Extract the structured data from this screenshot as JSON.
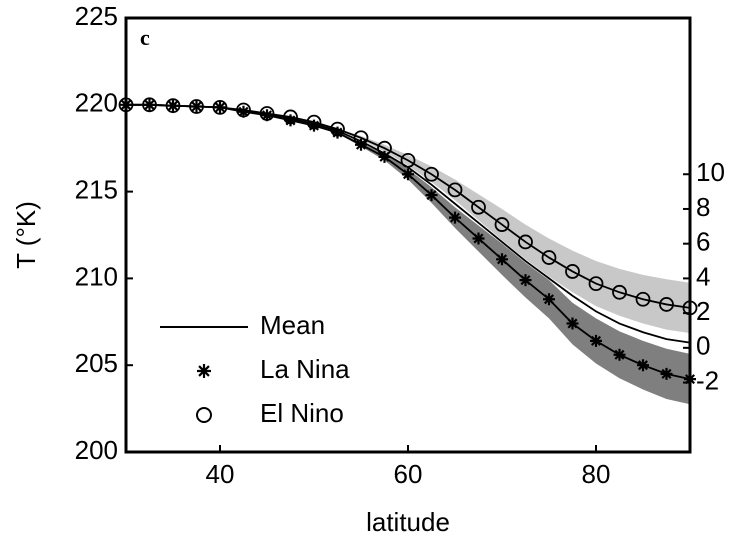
{
  "chart_data": {
    "type": "line",
    "annotation": "c",
    "xlabel": "latitude",
    "ylabel": "T (°K)",
    "x": [
      30,
      32.5,
      35,
      37.5,
      40,
      42.5,
      45,
      47.5,
      50,
      52.5,
      55,
      57.5,
      60,
      62.5,
      65,
      67.5,
      70,
      72.5,
      75,
      77.5,
      80,
      82.5,
      85,
      87.5,
      90
    ],
    "xlim": [
      30,
      90
    ],
    "xticks": [
      40,
      60,
      80
    ],
    "ylim": [
      200,
      225
    ],
    "yticks": [
      200,
      205,
      210,
      215,
      220,
      225
    ],
    "y2lim": [
      -6,
      19
    ],
    "y2ticks": [
      -2,
      0,
      2,
      4,
      6,
      8,
      10
    ],
    "legend": "lower left",
    "series": [
      {
        "name": "Mean",
        "color": "#000000",
        "marker": "none",
        "values": [
          220,
          220,
          219.95,
          219.9,
          219.85,
          219.65,
          219.45,
          219.2,
          218.9,
          218.5,
          217.9,
          217.2,
          216.4,
          215.4,
          214.3,
          213.2,
          212.1,
          211.0,
          210.0,
          209.0,
          208.1,
          207.4,
          206.9,
          206.5,
          206.3
        ]
      },
      {
        "name": "La Nina",
        "color": "#000000",
        "marker": "star",
        "band_color": "#7f7f7f",
        "values": [
          220,
          220,
          219.95,
          219.9,
          219.85,
          219.6,
          219.4,
          219.1,
          218.8,
          218.4,
          217.7,
          217.0,
          216.0,
          214.8,
          213.5,
          212.3,
          211.1,
          209.9,
          208.8,
          207.4,
          206.4,
          205.6,
          205.0,
          204.5,
          204.2
        ],
        "band_low": [
          220,
          220,
          219.95,
          219.9,
          219.85,
          219.6,
          219.4,
          219.1,
          218.8,
          218.35,
          217.6,
          216.8,
          215.7,
          214.35,
          212.9,
          211.55,
          210.2,
          208.9,
          207.7,
          206.2,
          205.1,
          204.25,
          203.6,
          203.05,
          202.75
        ],
        "band_high": [
          220,
          220,
          219.95,
          219.9,
          219.85,
          219.6,
          219.4,
          219.1,
          218.8,
          218.45,
          217.8,
          217.2,
          216.3,
          215.25,
          214.1,
          213.05,
          212.0,
          210.9,
          209.9,
          208.6,
          207.7,
          206.95,
          206.4,
          205.95,
          205.65
        ]
      },
      {
        "name": "El Nino",
        "color": "#000000",
        "marker": "circle",
        "band_color": "#c8c8c8",
        "values": [
          220,
          220,
          219.95,
          219.9,
          219.85,
          219.7,
          219.5,
          219.3,
          219.0,
          218.6,
          218.1,
          217.5,
          216.8,
          216.0,
          215.1,
          214.1,
          213.1,
          212.1,
          211.2,
          210.4,
          209.7,
          209.2,
          208.8,
          208.5,
          208.3
        ],
        "band_low": [
          220,
          220,
          219.95,
          219.9,
          219.85,
          219.7,
          219.5,
          219.3,
          219.0,
          218.55,
          218.0,
          217.3,
          216.5,
          215.55,
          214.5,
          213.35,
          212.2,
          211.1,
          210.1,
          209.2,
          208.4,
          207.85,
          207.4,
          207.05,
          206.85
        ],
        "band_high": [
          220,
          220,
          219.95,
          219.9,
          219.85,
          219.7,
          219.5,
          219.3,
          219.0,
          218.65,
          218.2,
          217.7,
          217.1,
          216.45,
          215.7,
          214.85,
          214.0,
          213.1,
          212.3,
          211.6,
          211.0,
          210.55,
          210.2,
          209.95,
          209.75
        ]
      }
    ]
  }
}
